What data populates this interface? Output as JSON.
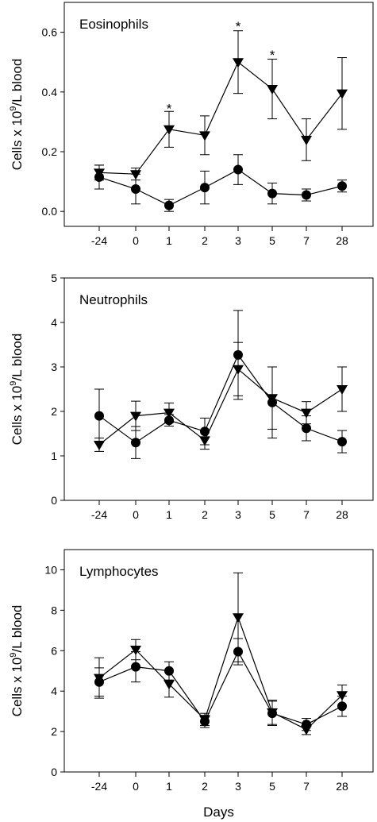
{
  "chart_data": [
    {
      "type": "line",
      "title": "Eosinophils",
      "ylabel_main": "Cells  x 10",
      "ylabel_sup": "9",
      "ylabel_tail": "/L blood",
      "categories": [
        "-24",
        "0",
        "1",
        "2",
        "3",
        "5",
        "7",
        "28"
      ],
      "ylim": [
        -0.05,
        0.7
      ],
      "yticks": [
        "0.0",
        "0.2",
        "0.4",
        "0.6"
      ],
      "ytick_values": [
        0,
        0.2,
        0.4,
        0.6
      ],
      "series": [
        {
          "marker": "triangle-down",
          "values": [
            0.13,
            0.125,
            0.275,
            0.255,
            0.5,
            0.41,
            0.24,
            0.395
          ],
          "errors": [
            0.025,
            0.02,
            0.06,
            0.065,
            0.105,
            0.1,
            0.07,
            0.12
          ]
        },
        {
          "marker": "circle",
          "values": [
            0.115,
            0.075,
            0.02,
            0.08,
            0.14,
            0.06,
            0.055,
            0.085
          ],
          "errors": [
            0.04,
            0.05,
            0.02,
            0.055,
            0.05,
            0.035,
            0.02,
            0.02
          ]
        }
      ],
      "annotations": [
        {
          "category": "1",
          "text": "*",
          "y": 0.345
        },
        {
          "category": "3",
          "text": "*",
          "y": 0.62
        },
        {
          "category": "5",
          "text": "*",
          "y": 0.525
        }
      ]
    },
    {
      "type": "line",
      "title": "Neutrophils",
      "ylabel_main": "Cells  x 10",
      "ylabel_sup": "9",
      "ylabel_tail": "/L blood",
      "categories": [
        "-24",
        "0",
        "1",
        "2",
        "3",
        "5",
        "7",
        "28"
      ],
      "ylim": [
        0,
        5
      ],
      "yticks": [
        "0",
        "1",
        "2",
        "3",
        "4",
        "5"
      ],
      "ytick_values": [
        0,
        1,
        2,
        3,
        4,
        5
      ],
      "series": [
        {
          "marker": "triangle-down",
          "values": [
            1.25,
            1.9,
            1.97,
            1.35,
            2.95,
            2.3,
            1.97,
            2.5
          ],
          "errors": [
            0.15,
            0.33,
            0.22,
            0.2,
            0.6,
            0.7,
            0.25,
            0.5
          ]
        },
        {
          "marker": "circle",
          "values": [
            1.9,
            1.3,
            1.8,
            1.55,
            3.27,
            2.2,
            1.62,
            1.32
          ],
          "errors": [
            0.6,
            0.36,
            0.13,
            0.3,
            1.0,
            0.8,
            0.28,
            0.25
          ]
        }
      ],
      "annotations": []
    },
    {
      "type": "line",
      "title": "Lymphocytes",
      "ylabel_main": "Cells  x 10",
      "ylabel_sup": "9",
      "ylabel_tail": "/L blood",
      "xlabel": "Days",
      "categories": [
        "-24",
        "0",
        "1",
        "2",
        "3",
        "5",
        "7",
        "28"
      ],
      "ylim": [
        0,
        11
      ],
      "yticks": [
        "0",
        "2",
        "4",
        "6",
        "8",
        "10"
      ],
      "ytick_values": [
        0,
        2,
        4,
        6,
        8,
        10
      ],
      "series": [
        {
          "marker": "triangle-down",
          "values": [
            4.65,
            6.05,
            4.35,
            2.6,
            7.65,
            2.95,
            2.1,
            3.8
          ],
          "errors": [
            1.0,
            0.5,
            0.65,
            0.3,
            2.2,
            0.6,
            0.25,
            0.5
          ]
        },
        {
          "marker": "circle",
          "values": [
            4.45,
            5.2,
            5.0,
            2.5,
            5.95,
            2.9,
            2.35,
            3.25
          ],
          "errors": [
            0.7,
            0.75,
            0.45,
            0.3,
            0.65,
            0.6,
            0.3,
            0.5
          ]
        }
      ],
      "annotations": []
    }
  ]
}
